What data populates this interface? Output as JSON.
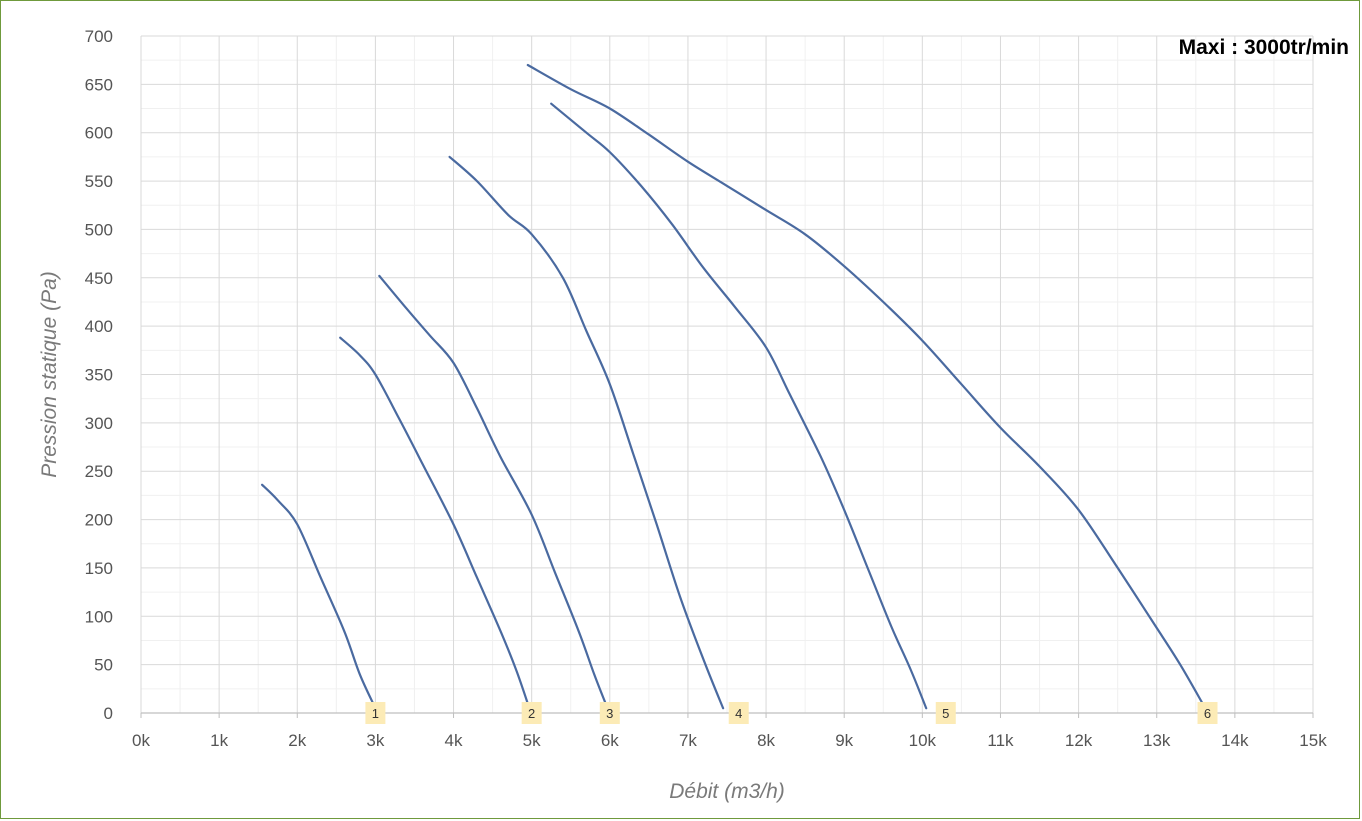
{
  "chart_data": {
    "type": "line",
    "title": "",
    "annotation": "Maxi : 3000tr/min",
    "xlabel": "Débit (m3/h)",
    "ylabel": "Pression statique (Pa)",
    "xlim": [
      0,
      15000
    ],
    "ylim": [
      0,
      700
    ],
    "x_ticks": [
      0,
      1000,
      2000,
      3000,
      4000,
      5000,
      6000,
      7000,
      8000,
      9000,
      10000,
      11000,
      12000,
      13000,
      14000,
      15000
    ],
    "x_tick_labels": [
      "0k",
      "1k",
      "2k",
      "3k",
      "4k",
      "5k",
      "6k",
      "7k",
      "8k",
      "9k",
      "10k",
      "11k",
      "12k",
      "13k",
      "14k",
      "15k"
    ],
    "y_ticks": [
      0,
      50,
      100,
      150,
      200,
      250,
      300,
      350,
      400,
      450,
      500,
      550,
      600,
      650,
      700
    ],
    "y_tick_labels": [
      "0",
      "50",
      "100",
      "150",
      "200",
      "250",
      "300",
      "350",
      "400",
      "450",
      "500",
      "550",
      "600",
      "650",
      "700"
    ],
    "grid": true,
    "line_color": "#4a6aa0",
    "badge_color": "#fcebb6",
    "series": [
      {
        "label": "1",
        "points": [
          [
            1550,
            236
          ],
          [
            1750,
            220
          ],
          [
            2000,
            195
          ],
          [
            2300,
            140
          ],
          [
            2600,
            85
          ],
          [
            2800,
            40
          ],
          [
            3000,
            5
          ]
        ]
      },
      {
        "label": "2",
        "points": [
          [
            2550,
            388
          ],
          [
            2800,
            370
          ],
          [
            3000,
            350
          ],
          [
            3300,
            305
          ],
          [
            3600,
            258
          ],
          [
            4000,
            195
          ],
          [
            4300,
            140
          ],
          [
            4600,
            85
          ],
          [
            4800,
            45
          ],
          [
            4970,
            5
          ]
        ]
      },
      {
        "label": "3",
        "points": [
          [
            3050,
            452
          ],
          [
            3400,
            418
          ],
          [
            3700,
            390
          ],
          [
            4000,
            362
          ],
          [
            4300,
            315
          ],
          [
            4600,
            265
          ],
          [
            5000,
            205
          ],
          [
            5300,
            145
          ],
          [
            5600,
            85
          ],
          [
            5800,
            40
          ],
          [
            5970,
            5
          ]
        ]
      },
      {
        "label": "4",
        "points": [
          [
            3950,
            575
          ],
          [
            4300,
            550
          ],
          [
            4700,
            515
          ],
          [
            5000,
            495
          ],
          [
            5400,
            450
          ],
          [
            5700,
            395
          ],
          [
            6000,
            340
          ],
          [
            6300,
            268
          ],
          [
            6600,
            195
          ],
          [
            6900,
            120
          ],
          [
            7200,
            55
          ],
          [
            7450,
            5
          ]
        ]
      },
      {
        "label": "5",
        "points": [
          [
            5250,
            630
          ],
          [
            5700,
            600
          ],
          [
            6000,
            580
          ],
          [
            6400,
            545
          ],
          [
            6800,
            505
          ],
          [
            7200,
            460
          ],
          [
            7600,
            420
          ],
          [
            8000,
            378
          ],
          [
            8300,
            330
          ],
          [
            8700,
            265
          ],
          [
            9000,
            210
          ],
          [
            9300,
            150
          ],
          [
            9600,
            90
          ],
          [
            9850,
            45
          ],
          [
            10050,
            5
          ]
        ]
      },
      {
        "label": "6",
        "points": [
          [
            4950,
            670
          ],
          [
            5500,
            645
          ],
          [
            6000,
            625
          ],
          [
            6500,
            598
          ],
          [
            7000,
            570
          ],
          [
            7500,
            545
          ],
          [
            8000,
            520
          ],
          [
            8500,
            495
          ],
          [
            9000,
            462
          ],
          [
            9500,
            425
          ],
          [
            10000,
            385
          ],
          [
            10500,
            340
          ],
          [
            11000,
            295
          ],
          [
            11500,
            255
          ],
          [
            12000,
            210
          ],
          [
            12500,
            150
          ],
          [
            13000,
            88
          ],
          [
            13300,
            50
          ],
          [
            13600,
            8
          ]
        ]
      }
    ],
    "badges": [
      {
        "label": "1",
        "x": 3000
      },
      {
        "label": "2",
        "x": 5000
      },
      {
        "label": "3",
        "x": 6000
      },
      {
        "label": "4",
        "x": 7650
      },
      {
        "label": "5",
        "x": 10300
      },
      {
        "label": "6",
        "x": 13650
      }
    ]
  }
}
